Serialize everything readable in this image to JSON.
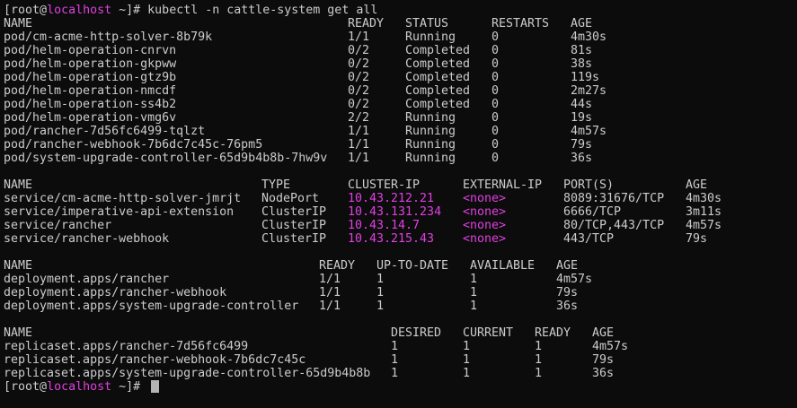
{
  "terminal": {
    "accent_color": "#e040e0",
    "prompt": {
      "open": "[",
      "user": "root",
      "at": "@",
      "host": "localhost",
      "dir": " ~",
      "close": "]# "
    },
    "command": "kubectl -n cattle-system get all",
    "sections": [
      {
        "id": "pods",
        "headers": [
          "NAME",
          "READY",
          "STATUS",
          "RESTARTS",
          "AGE"
        ],
        "rows": [
          [
            "pod/cm-acme-http-solver-8b79k",
            "1/1",
            "Running",
            "0",
            "4m30s"
          ],
          [
            "pod/helm-operation-cnrvn",
            "0/2",
            "Completed",
            "0",
            "81s"
          ],
          [
            "pod/helm-operation-gkpww",
            "0/2",
            "Completed",
            "0",
            "38s"
          ],
          [
            "pod/helm-operation-gtz9b",
            "0/2",
            "Completed",
            "0",
            "119s"
          ],
          [
            "pod/helm-operation-nmcdf",
            "0/2",
            "Completed",
            "0",
            "2m27s"
          ],
          [
            "pod/helm-operation-ss4b2",
            "0/2",
            "Completed",
            "0",
            "44s"
          ],
          [
            "pod/helm-operation-vmg6v",
            "2/2",
            "Running",
            "0",
            "19s"
          ],
          [
            "pod/rancher-7d56fc6499-tqlzt",
            "1/1",
            "Running",
            "0",
            "4m57s"
          ],
          [
            "pod/rancher-webhook-7b6dc7c45c-76pm5",
            "1/1",
            "Running",
            "0",
            "79s"
          ],
          [
            "pod/system-upgrade-controller-65d9b4b8b-7hw9v",
            "1/1",
            "Running",
            "0",
            "36s"
          ]
        ]
      },
      {
        "id": "services",
        "headers": [
          "NAME",
          "TYPE",
          "CLUSTER-IP",
          "EXTERNAL-IP",
          "PORT(S)",
          "AGE"
        ],
        "rows": [
          [
            "service/cm-acme-http-solver-jmrjt",
            "NodePort",
            "10.43.212.21",
            "<none>",
            "8089:31676/TCP",
            "4m30s"
          ],
          [
            "service/imperative-api-extension",
            "ClusterIP",
            "10.43.131.234",
            "<none>",
            "6666/TCP",
            "3m11s"
          ],
          [
            "service/rancher",
            "ClusterIP",
            "10.43.14.7",
            "<none>",
            "80/TCP,443/TCP",
            "4m57s"
          ],
          [
            "service/rancher-webhook",
            "ClusterIP",
            "10.43.215.43",
            "<none>",
            "443/TCP",
            "79s"
          ]
        ]
      },
      {
        "id": "deployments",
        "headers": [
          "NAME",
          "READY",
          "UP-TO-DATE",
          "AVAILABLE",
          "AGE"
        ],
        "rows": [
          [
            "deployment.apps/rancher",
            "1/1",
            "1",
            "1",
            "4m57s"
          ],
          [
            "deployment.apps/rancher-webhook",
            "1/1",
            "1",
            "1",
            "79s"
          ],
          [
            "deployment.apps/system-upgrade-controller",
            "1/1",
            "1",
            "1",
            "36s"
          ]
        ]
      },
      {
        "id": "replicasets",
        "headers": [
          "NAME",
          "DESIRED",
          "CURRENT",
          "READY",
          "AGE"
        ],
        "rows": [
          [
            "replicaset.apps/rancher-7d56fc6499",
            "1",
            "1",
            "1",
            "4m57s"
          ],
          [
            "replicaset.apps/rancher-webhook-7b6dc7c45c",
            "1",
            "1",
            "1",
            "79s"
          ],
          [
            "replicaset.apps/system-upgrade-controller-65d9b4b8b",
            "1",
            "1",
            "1",
            "36s"
          ]
        ]
      }
    ]
  }
}
